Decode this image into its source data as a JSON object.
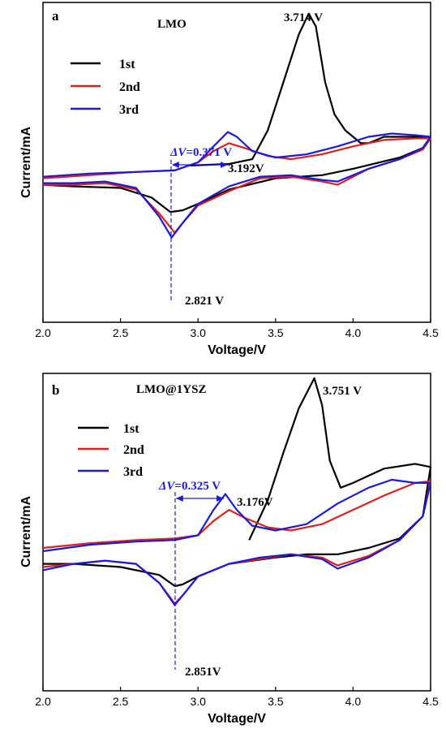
{
  "chart_data": [
    {
      "type": "line",
      "panel_label": "a",
      "title": "LMO",
      "xlabel": "Voltage/V",
      "ylabel": "Current/mA",
      "xlim": [
        2.0,
        4.5
      ],
      "ylim": [
        -1.0,
        1.0
      ],
      "x_ticks": [
        "2.0",
        "2.5",
        "3.0",
        "3.5",
        "4.0",
        "4.5"
      ],
      "y_ticks_labeled": false,
      "legend": {
        "position": "top-left",
        "entries": [
          "1st",
          "2nd",
          "3rd"
        ]
      },
      "annotations": {
        "peak_1st": "3.714 V",
        "peak_3rd": "3.192V",
        "valley": "2.821 V",
        "delta_prefix": "ΔV",
        "delta_value": "=0.371 V"
      },
      "series": [
        {
          "name": "1st",
          "color": "#000000",
          "anodic": [
            [
              2.95,
              -0.02
            ],
            [
              3.2,
              -0.01
            ],
            [
              3.35,
              0.02
            ],
            [
              3.45,
              0.2
            ],
            [
              3.55,
              0.5
            ],
            [
              3.65,
              0.8
            ],
            [
              3.714,
              0.93
            ],
            [
              3.76,
              0.85
            ],
            [
              3.82,
              0.5
            ],
            [
              3.88,
              0.3
            ],
            [
              3.95,
              0.2
            ],
            [
              4.05,
              0.12
            ],
            [
              4.1,
              0.12
            ],
            [
              4.2,
              0.16
            ],
            [
              4.3,
              0.16
            ],
            [
              4.5,
              0.16
            ]
          ],
          "cathodic": [
            [
              4.5,
              0.16
            ],
            [
              4.45,
              0.09
            ],
            [
              4.3,
              0.03
            ],
            [
              4.0,
              -0.04
            ],
            [
              3.8,
              -0.08
            ],
            [
              3.5,
              -0.1
            ],
            [
              3.2,
              -0.17
            ],
            [
              3.0,
              -0.26
            ],
            [
              2.9,
              -0.3
            ],
            [
              2.821,
              -0.31
            ],
            [
              2.7,
              -0.22
            ],
            [
              2.5,
              -0.16
            ],
            [
              2.2,
              -0.15
            ],
            [
              2.0,
              -0.14
            ]
          ]
        },
        {
          "name": "2nd",
          "color": "#e0201b",
          "anodic": [
            [
              2.0,
              -0.1
            ],
            [
              2.3,
              -0.08
            ],
            [
              2.6,
              -0.06
            ],
            [
              2.85,
              -0.05
            ],
            [
              3.0,
              0.0
            ],
            [
              3.1,
              0.07
            ],
            [
              3.2,
              0.12
            ],
            [
              3.3,
              0.09
            ],
            [
              3.45,
              0.04
            ],
            [
              3.6,
              0.02
            ],
            [
              3.8,
              0.05
            ],
            [
              4.0,
              0.1
            ],
            [
              4.2,
              0.14
            ],
            [
              4.4,
              0.15
            ],
            [
              4.5,
              0.15
            ]
          ],
          "cathodic": [
            [
              4.5,
              0.15
            ],
            [
              4.45,
              0.08
            ],
            [
              4.3,
              0.02
            ],
            [
              4.1,
              -0.04
            ],
            [
              3.9,
              -0.14
            ],
            [
              3.8,
              -0.12
            ],
            [
              3.6,
              -0.09
            ],
            [
              3.4,
              -0.1
            ],
            [
              3.2,
              -0.18
            ],
            [
              3.0,
              -0.27
            ],
            [
              2.9,
              -0.38
            ],
            [
              2.85,
              -0.44
            ],
            [
              2.75,
              -0.32
            ],
            [
              2.6,
              -0.17
            ],
            [
              2.4,
              -0.13
            ],
            [
              2.2,
              -0.14
            ],
            [
              2.0,
              -0.14
            ]
          ]
        },
        {
          "name": "3rd",
          "color": "#1a1adc",
          "anodic": [
            [
              2.0,
              -0.09
            ],
            [
              2.3,
              -0.07
            ],
            [
              2.6,
              -0.06
            ],
            [
              2.85,
              -0.05
            ],
            [
              3.0,
              0.0
            ],
            [
              3.1,
              0.1
            ],
            [
              3.192,
              0.19
            ],
            [
              3.25,
              0.16
            ],
            [
              3.35,
              0.07
            ],
            [
              3.5,
              0.03
            ],
            [
              3.7,
              0.05
            ],
            [
              3.9,
              0.1
            ],
            [
              4.1,
              0.16
            ],
            [
              4.25,
              0.18
            ],
            [
              4.4,
              0.17
            ],
            [
              4.5,
              0.16
            ]
          ],
          "cathodic": [
            [
              4.5,
              0.16
            ],
            [
              4.45,
              0.09
            ],
            [
              4.3,
              0.02
            ],
            [
              4.1,
              -0.04
            ],
            [
              3.9,
              -0.12
            ],
            [
              3.8,
              -0.11
            ],
            [
              3.6,
              -0.08
            ],
            [
              3.4,
              -0.09
            ],
            [
              3.2,
              -0.15
            ],
            [
              3.0,
              -0.26
            ],
            [
              2.9,
              -0.38
            ],
            [
              2.83,
              -0.47
            ],
            [
              2.75,
              -0.34
            ],
            [
              2.6,
              -0.16
            ],
            [
              2.4,
              -0.12
            ],
            [
              2.2,
              -0.13
            ],
            [
              2.0,
              -0.13
            ]
          ]
        }
      ]
    },
    {
      "type": "line",
      "panel_label": "b",
      "title": "LMO@1YSZ",
      "xlabel": "Voltage/V",
      "ylabel": "Current/mA",
      "xlim": [
        2.0,
        4.5
      ],
      "ylim": [
        -1.0,
        1.0
      ],
      "x_ticks": [
        "2.0",
        "2.5",
        "3.0",
        "3.5",
        "4.0",
        "4.5"
      ],
      "y_ticks_labeled": false,
      "legend": {
        "position": "top-left",
        "entries": [
          "1st",
          "2nd",
          "3rd"
        ]
      },
      "annotations": {
        "peak_1st": "3.751 V",
        "peak_3rd": "3.176V",
        "valley": "2.851V",
        "delta_prefix": "ΔV",
        "delta_value": "=0.325 V"
      },
      "series": [
        {
          "name": "1st",
          "color": "#000000",
          "anodic": [
            [
              3.33,
              -0.05
            ],
            [
              3.45,
              0.2
            ],
            [
              3.55,
              0.5
            ],
            [
              3.65,
              0.78
            ],
            [
              3.75,
              0.97
            ],
            [
              3.8,
              0.8
            ],
            [
              3.85,
              0.45
            ],
            [
              3.92,
              0.28
            ],
            [
              4.0,
              0.31
            ],
            [
              4.2,
              0.4
            ],
            [
              4.4,
              0.43
            ],
            [
              4.5,
              0.41
            ]
          ],
          "cathodic": [
            [
              4.5,
              0.41
            ],
            [
              4.45,
              0.1
            ],
            [
              4.3,
              -0.04
            ],
            [
              4.1,
              -0.1
            ],
            [
              3.9,
              -0.14
            ],
            [
              3.7,
              -0.14
            ],
            [
              3.5,
              -0.16
            ],
            [
              3.2,
              -0.2
            ],
            [
              3.0,
              -0.28
            ],
            [
              2.9,
              -0.33
            ],
            [
              2.851,
              -0.34
            ],
            [
              2.75,
              -0.27
            ],
            [
              2.5,
              -0.22
            ],
            [
              2.2,
              -0.2
            ],
            [
              2.0,
              -0.2
            ]
          ]
        },
        {
          "name": "2nd",
          "color": "#e0201b",
          "anodic": [
            [
              2.0,
              -0.1
            ],
            [
              2.3,
              -0.07
            ],
            [
              2.6,
              -0.05
            ],
            [
              2.85,
              -0.04
            ],
            [
              3.0,
              -0.02
            ],
            [
              3.1,
              0.07
            ],
            [
              3.2,
              0.14
            ],
            [
              3.3,
              0.09
            ],
            [
              3.45,
              0.03
            ],
            [
              3.6,
              0.01
            ],
            [
              3.8,
              0.05
            ],
            [
              4.0,
              0.14
            ],
            [
              4.2,
              0.23
            ],
            [
              4.4,
              0.31
            ],
            [
              4.5,
              0.32
            ]
          ],
          "cathodic": [
            [
              4.5,
              0.32
            ],
            [
              4.45,
              0.1
            ],
            [
              4.3,
              -0.05
            ],
            [
              4.1,
              -0.15
            ],
            [
              3.9,
              -0.21
            ],
            [
              3.8,
              -0.16
            ],
            [
              3.6,
              -0.14
            ],
            [
              3.4,
              -0.17
            ],
            [
              3.2,
              -0.2
            ],
            [
              3.0,
              -0.28
            ],
            [
              2.9,
              -0.4
            ],
            [
              2.85,
              -0.45
            ],
            [
              2.75,
              -0.32
            ],
            [
              2.6,
              -0.2
            ],
            [
              2.4,
              -0.18
            ],
            [
              2.2,
              -0.2
            ],
            [
              2.0,
              -0.22
            ]
          ]
        },
        {
          "name": "3rd",
          "color": "#1a1adc",
          "anodic": [
            [
              2.0,
              -0.12
            ],
            [
              2.3,
              -0.08
            ],
            [
              2.6,
              -0.06
            ],
            [
              2.85,
              -0.05
            ],
            [
              3.0,
              -0.02
            ],
            [
              3.1,
              0.14
            ],
            [
              3.176,
              0.24
            ],
            [
              3.25,
              0.14
            ],
            [
              3.35,
              0.04
            ],
            [
              3.5,
              0.01
            ],
            [
              3.7,
              0.05
            ],
            [
              3.9,
              0.18
            ],
            [
              4.1,
              0.28
            ],
            [
              4.25,
              0.33
            ],
            [
              4.4,
              0.31
            ],
            [
              4.5,
              0.31
            ]
          ],
          "cathodic": [
            [
              4.5,
              0.31
            ],
            [
              4.45,
              0.1
            ],
            [
              4.3,
              -0.05
            ],
            [
              4.1,
              -0.16
            ],
            [
              3.9,
              -0.23
            ],
            [
              3.8,
              -0.17
            ],
            [
              3.6,
              -0.14
            ],
            [
              3.4,
              -0.16
            ],
            [
              3.2,
              -0.2
            ],
            [
              3.0,
              -0.28
            ],
            [
              2.9,
              -0.4
            ],
            [
              2.85,
              -0.46
            ],
            [
              2.75,
              -0.32
            ],
            [
              2.6,
              -0.2
            ],
            [
              2.4,
              -0.18
            ],
            [
              2.2,
              -0.2
            ],
            [
              2.0,
              -0.24
            ]
          ]
        }
      ]
    }
  ]
}
